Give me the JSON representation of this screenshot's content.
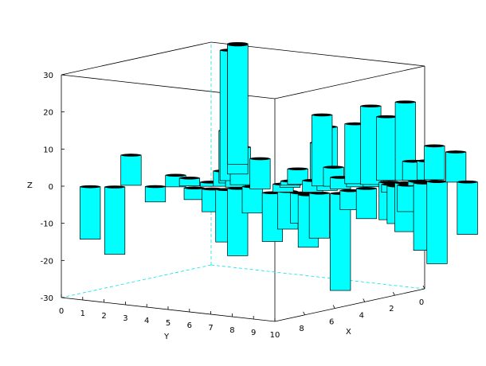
{
  "chart_data": {
    "type": "bar3d",
    "title": "",
    "xlabel": "X",
    "ylabel": "Y",
    "zlabel": "Z",
    "xlim": [
      0,
      10
    ],
    "ylim": [
      0,
      10
    ],
    "zlim": [
      -30,
      30
    ],
    "x_ticks": [
      "0",
      "2",
      "4",
      "6",
      "8"
    ],
    "y_ticks": [
      "0",
      "1",
      "2",
      "3",
      "4",
      "5",
      "6",
      "7",
      "8",
      "9",
      "10"
    ],
    "z_ticks": [
      "-30",
      "-20",
      "-10",
      "0",
      "10",
      "20",
      "30"
    ],
    "bar_color": "#00ffff",
    "bars": [
      {
        "x": 9.5,
        "y": 1.0,
        "z": -14
      },
      {
        "x": 9.0,
        "y": 1.8,
        "z": -18
      },
      {
        "x": 8.2,
        "y": 2.0,
        "z": 8
      },
      {
        "x": 8.0,
        "y": 3.0,
        "z": -4
      },
      {
        "x": 7.5,
        "y": 3.6,
        "z": 3
      },
      {
        "x": 7.0,
        "y": 3.9,
        "z": 2
      },
      {
        "x": 7.4,
        "y": 4.4,
        "z": -3
      },
      {
        "x": 6.6,
        "y": 4.6,
        "z": 1
      },
      {
        "x": 6.3,
        "y": 5.0,
        "z": 4
      },
      {
        "x": 7.2,
        "y": 5.1,
        "z": -6
      },
      {
        "x": 7.0,
        "y": 5.6,
        "z": -14
      },
      {
        "x": 6.2,
        "y": 5.5,
        "z": 5
      },
      {
        "x": 6.5,
        "y": 5.8,
        "z": -18
      },
      {
        "x": 5.8,
        "y": 6.0,
        "z": -7
      },
      {
        "x": 1.5,
        "y": 2.3,
        "z": 32
      },
      {
        "x": 3.5,
        "y": 3.7,
        "z": 35
      },
      {
        "x": 5.0,
        "y": 4.4,
        "z": 35
      },
      {
        "x": 5.5,
        "y": 4.7,
        "z": 14
      },
      {
        "x": 5.6,
        "y": 5.3,
        "z": 10
      },
      {
        "x": 6.0,
        "y": 6.5,
        "z": 8
      },
      {
        "x": 6.6,
        "y": 7.5,
        "z": -13
      },
      {
        "x": 6.0,
        "y": 7.8,
        "z": -10
      },
      {
        "x": 6.0,
        "y": 8.4,
        "z": -8
      },
      {
        "x": 6.2,
        "y": 8.9,
        "z": -14
      },
      {
        "x": 5.6,
        "y": 9.0,
        "z": -12
      },
      {
        "x": 5.2,
        "y": 9.7,
        "z": -26
      },
      {
        "x": 4.8,
        "y": 8.8,
        "z": 17
      },
      {
        "x": 4.4,
        "y": 8.2,
        "z": 12
      },
      {
        "x": 4.0,
        "y": 8.0,
        "z": 19
      },
      {
        "x": 3.4,
        "y": 9.2,
        "z": 14
      },
      {
        "x": 3.0,
        "y": 9.7,
        "z": 11
      },
      {
        "x": 2.8,
        "y": 8.7,
        "z": 16
      },
      {
        "x": 3.6,
        "y": 9.8,
        "z": -8
      },
      {
        "x": 4.4,
        "y": 9.6,
        "z": -5
      },
      {
        "x": 4.2,
        "y": 9.0,
        "z": 3
      },
      {
        "x": 3.8,
        "y": 8.4,
        "z": 5
      },
      {
        "x": 2.6,
        "y": 9.3,
        "z": 21
      },
      {
        "x": 2.2,
        "y": 10.0,
        "z": -2
      },
      {
        "x": 1.8,
        "y": 9.6,
        "z": -10
      },
      {
        "x": 1.4,
        "y": 9.2,
        "z": 17
      },
      {
        "x": 1.0,
        "y": 9.8,
        "z": 21
      },
      {
        "x": 0.8,
        "y": 10.0,
        "z": 5
      },
      {
        "x": 1.6,
        "y": 10.2,
        "z": -13
      },
      {
        "x": 2.4,
        "y": 10.4,
        "z": -10
      },
      {
        "x": 2.0,
        "y": 10.6,
        "z": -7
      },
      {
        "x": 1.2,
        "y": 10.8,
        "z": -18
      },
      {
        "x": 0.6,
        "y": 11.0,
        "z": -22
      },
      {
        "x": 0.4,
        "y": 10.4,
        "z": 5
      },
      {
        "x": 1.0,
        "y": 10.4,
        "z": -1
      },
      {
        "x": 0.2,
        "y": 10.6,
        "z": 9
      },
      {
        "x": 0.2,
        "y": 11.6,
        "z": 8
      },
      {
        "x": 0.0,
        "y": 12.0,
        "z": -14
      },
      {
        "x": 4.6,
        "y": 6.6,
        "z": -2
      },
      {
        "x": 5.0,
        "y": 7.2,
        "z": 1
      },
      {
        "x": 4.2,
        "y": 7.0,
        "z": 4
      },
      {
        "x": 3.8,
        "y": 6.4,
        "z": -1
      },
      {
        "x": 3.2,
        "y": 7.0,
        "z": -3
      }
    ]
  }
}
